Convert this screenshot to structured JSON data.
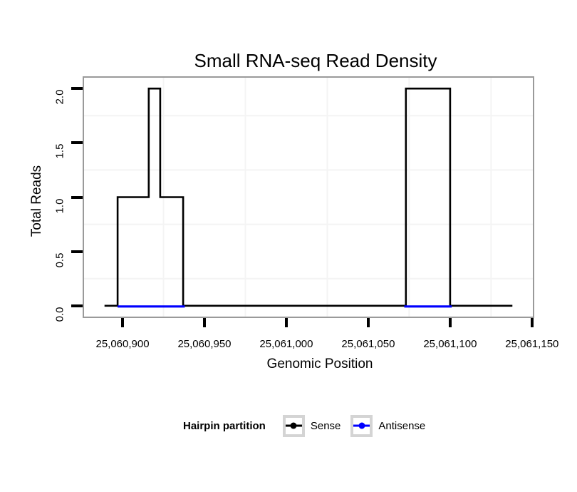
{
  "title": "Small RNA-seq Read Density",
  "x_axis": {
    "title": "Genomic Position",
    "tick_labels": [
      "25,060,900",
      "25,060,950",
      "25,061,000",
      "25,061,050",
      "25,061,100",
      "25,061,150"
    ]
  },
  "y_axis": {
    "title": "Total Reads",
    "tick_labels": [
      "0.0",
      "0.5",
      "1.0",
      "1.5",
      "2.0"
    ]
  },
  "legend": {
    "title": "Hairpin partition",
    "items": [
      {
        "label": "Sense",
        "color": "#000000"
      },
      {
        "label": "Antisense",
        "color": "#0000ff"
      }
    ]
  },
  "colors": {
    "panel_border": "#9a9a9a",
    "minor_grid": "#f4f4f4",
    "tick": "#000000",
    "legend_key_border": "#d4d4d4",
    "background": "#ffffff"
  },
  "chart_data": {
    "type": "line",
    "title": "Small RNA-seq Read Density",
    "xlabel": "Genomic Position",
    "ylabel": "Total Reads",
    "xlim": [
      25060876.5,
      25061150.5
    ],
    "ylim": [
      -0.1,
      2.1
    ],
    "x_tick_values": [
      25060900,
      25060950,
      25061000,
      25061050,
      25061100,
      25061150
    ],
    "y_tick_values": [
      0,
      0.5,
      1,
      1.5,
      2
    ],
    "minor_gridlines_x": [
      25060925,
      25060975,
      25061025,
      25061075,
      25061125
    ],
    "minor_gridlines_y": [
      0.25,
      0.75,
      1.25,
      1.75
    ],
    "grid": "minor gridlines only, very light gray on white panel",
    "legend_position": "bottom",
    "series": [
      {
        "name": "Sense",
        "color": "#000000",
        "style": "step outline",
        "points": [
          [
            25060889,
            0
          ],
          [
            25060897,
            0
          ],
          [
            25060897,
            1
          ],
          [
            25060916,
            1
          ],
          [
            25060916,
            2
          ],
          [
            25060923,
            2
          ],
          [
            25060923,
            1
          ],
          [
            25060937,
            1
          ],
          [
            25060937,
            0
          ],
          [
            25061073,
            0
          ],
          [
            25061073,
            2
          ],
          [
            25061100,
            2
          ],
          [
            25061100,
            0
          ],
          [
            25061138,
            0
          ]
        ]
      },
      {
        "name": "Antisense",
        "color": "#0000ff",
        "style": "flat segments at zero reads",
        "segments": [
          [
            [
              25060897,
              0
            ],
            [
              25060938,
              0
            ]
          ],
          [
            [
              25061072,
              0
            ],
            [
              25061101,
              0
            ]
          ]
        ]
      }
    ]
  }
}
